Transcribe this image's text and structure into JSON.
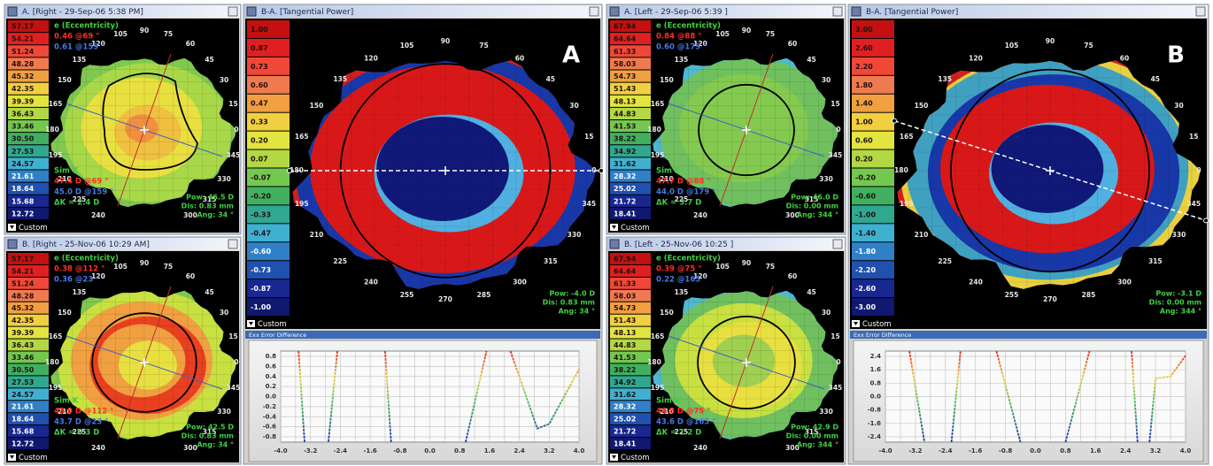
{
  "panels": [
    {
      "title": "A. [Right - 29-Sep-06 5:38 PM]",
      "scale": [
        "57.17",
        "54.21",
        "51.24",
        "48.28",
        "45.32",
        "42.35",
        "39.39",
        "36.43",
        "33.46",
        "30.50",
        "27.53",
        "24.57",
        "21.61",
        "18.64",
        "15.68",
        "12.72"
      ],
      "eccentricity_label": "e (Eccentricity)",
      "eccentricity": [
        "0.46 @69 °",
        "0.61 @159 °"
      ],
      "simk_label": "Sim K",
      "simk": [
        "47.4 D @69 °",
        "45.0 D @159 °"
      ],
      "delta_k": "ΔK = 2.4 D",
      "cursor": [
        "Pow: 46.5 D",
        "Dis: 0.83 mm",
        "Ang: 34 °"
      ],
      "button": "Custom"
    },
    {
      "title": "B. [Right - 25-Nov-06 10:29 AM]",
      "scale": [
        "57.17",
        "54.21",
        "51.24",
        "48.28",
        "45.32",
        "42.35",
        "39.39",
        "36.43",
        "33.46",
        "30.50",
        "27.53",
        "24.57",
        "21.61",
        "18.64",
        "15.68",
        "12.72"
      ],
      "eccentricity_label": "e (Eccentricity)",
      "eccentricity": [
        "0.38 @112 °",
        "0.36 @23 °"
      ],
      "simk_label": "Sim K",
      "simk": [
        "43.9 D @112 °",
        "43.7 D @23 °"
      ],
      "delta_k": "ΔK = 0.3 D",
      "cursor": [
        "Pow: 42.5 D",
        "Dis: 0.83 mm",
        "Ang: 34 °"
      ],
      "button": "Custom"
    },
    {
      "title": "B-A. [Tangential Power]",
      "scale": [
        "1.00",
        "0.87",
        "0.73",
        "0.60",
        "0.47",
        "0.33",
        "0.20",
        "0.07",
        "-0.07",
        "-0.20",
        "-0.33",
        "-0.47",
        "-0.60",
        "-0.73",
        "-0.87",
        "-1.00"
      ],
      "cursor": [
        "Pow: -4.0 D",
        "Dis: 0.83 mm",
        "Ang: 34 °"
      ],
      "button": "Custom",
      "letter": "A",
      "graph": {
        "title": "Exx Error Difference",
        "yticks": [
          "0.8",
          "0.6",
          "0.4",
          "0.2",
          "0.0",
          "-0.2",
          "-0.4",
          "-0.6",
          "-0.8"
        ],
        "xticks": [
          "-4.0",
          "-3.2",
          "-2.4",
          "-1.6",
          "-0.8",
          "0.0",
          "0.8",
          "1.6",
          "2.4",
          "3.2",
          "4.0"
        ]
      }
    },
    {
      "title": "A. [Left - 29-Sep-06 5:39 ]",
      "scale": [
        "67.94",
        "64.64",
        "61.33",
        "58.03",
        "54.73",
        "51.43",
        "48.13",
        "44.83",
        "41.53",
        "38.22",
        "34.92",
        "31.62",
        "28.32",
        "25.02",
        "21.72",
        "18.41"
      ],
      "eccentricity_label": "e (Eccentricity)",
      "eccentricity": [
        "0.84 @88 °",
        "0.60 @179 °"
      ],
      "simk_label": "Sim K",
      "simk": [
        "47.7 D @88 °",
        "44.0 D @179 °"
      ],
      "delta_k": "ΔK = 3.7 D",
      "cursor": [
        "Pow: 46.0 D",
        "Dis: 0.00 mm",
        "Ang: 344 °"
      ],
      "button": "Custom"
    },
    {
      "title": "B. [Left - 25-Nov-06 10:25 ]",
      "scale": [
        "67.94",
        "64.64",
        "61.33",
        "58.03",
        "54.73",
        "51.43",
        "48.13",
        "44.83",
        "41.53",
        "38.22",
        "34.92",
        "31.62",
        "28.32",
        "25.02",
        "21.72",
        "18.41"
      ],
      "eccentricity_label": "e (Eccentricity)",
      "eccentricity": [
        "0.39 @75 °",
        "0.22 @165 °"
      ],
      "simk_label": "Sim K",
      "simk": [
        "44.8 D @75 °",
        "43.6 D @165 °"
      ],
      "delta_k": "ΔK = 1.2 D",
      "cursor": [
        "Pow: 42.9 D",
        "Dis: 0.00 mm",
        "Ang: 344 °"
      ],
      "button": "Custom"
    },
    {
      "title": "B-A. [Tangential Power]",
      "scale": [
        "3.00",
        "2.60",
        "2.20",
        "1.80",
        "1.40",
        "1.00",
        "0.60",
        "0.20",
        "-0.20",
        "-0.60",
        "-1.00",
        "-1.40",
        "-1.80",
        "-2.20",
        "-2.60",
        "-3.00"
      ],
      "cursor": [
        "Pow: -3.1 D",
        "Dis: 0.00 mm",
        "Ang: 344 °"
      ],
      "button": "Custom",
      "letter": "B",
      "graph": {
        "title": "Exx Error Difference",
        "yticks": [
          "2.4",
          "1.6",
          "0.8",
          "0.0",
          "-0.8",
          "-1.6",
          "-2.4"
        ],
        "xticks": [
          "-4.0",
          "-3.2",
          "-2.4",
          "-1.6",
          "-0.8",
          "0.0",
          "0.8",
          "1.6",
          "2.4",
          "3.2",
          "4.0"
        ]
      }
    }
  ],
  "angle_labels": [
    "0",
    "15",
    "30",
    "45",
    "60",
    "75",
    "90",
    "105",
    "120",
    "135",
    "150",
    "165",
    "180",
    "195",
    "210",
    "225",
    "240",
    "255",
    "270",
    "285",
    "300",
    "315",
    "330",
    "345"
  ]
}
